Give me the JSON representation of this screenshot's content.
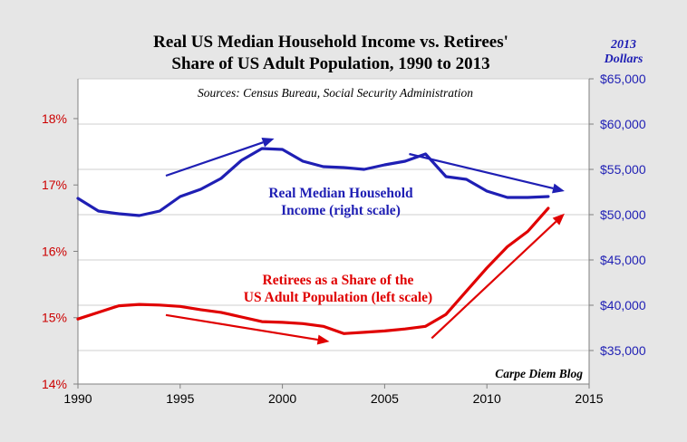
{
  "chart_data": {
    "type": "line",
    "title_lines": [
      "Real US Median Household Income vs. Retirees'",
      "Share of US Adult Population, 1990 to 2013"
    ],
    "right_axis_unit_lines": [
      "2013",
      "Dollars"
    ],
    "source_note": "Sources: Census Bureau, Social Security Administration",
    "credit": "Carpe Diem Blog",
    "x_range": [
      1990,
      2015
    ],
    "x_ticks": [
      1990,
      1995,
      2000,
      2005,
      2010,
      2015
    ],
    "y_left_range": [
      14,
      18.6
    ],
    "y_left_ticks": [
      14,
      15,
      16,
      17,
      18
    ],
    "y_left_tick_labels": [
      "14%",
      "15%",
      "16%",
      "17%",
      "18%"
    ],
    "y_right_range": [
      31300,
      65000
    ],
    "y_right_ticks": [
      35000,
      40000,
      45000,
      50000,
      55000,
      60000,
      65000
    ],
    "y_right_tick_labels": [
      "$35,000",
      "$40,000",
      "$45,000",
      "$50,000",
      "$55,000",
      "$60,000",
      "$65,000"
    ],
    "grid": true,
    "series": [
      {
        "axis": "right",
        "color": "#1f1fb4",
        "annotation_lines": [
          "Real Median Household",
          "Income (right scale)"
        ],
        "x": [
          1990,
          1991,
          1992,
          1993,
          1994,
          1995,
          1996,
          1997,
          1998,
          1999,
          2000,
          2001,
          2002,
          2003,
          2004,
          2005,
          2006,
          2007,
          2008,
          2009,
          2010,
          2011,
          2012,
          2013
        ],
        "values": [
          51800,
          50400,
          50100,
          49900,
          50400,
          52000,
          52800,
          54000,
          56000,
          57300,
          57200,
          55900,
          55300,
          55200,
          55000,
          55500,
          55900,
          56700,
          54200,
          53900,
          52600,
          51900,
          51900,
          52000
        ]
      },
      {
        "axis": "left",
        "color": "#e00000",
        "annotation_lines": [
          "Retirees as a Share of the",
          "US Adult Population (left scale)"
        ],
        "x": [
          1990,
          1991,
          1992,
          1993,
          1994,
          1995,
          1996,
          1997,
          1998,
          1999,
          2000,
          2001,
          2002,
          2003,
          2004,
          2005,
          2006,
          2007,
          2008,
          2009,
          2010,
          2011,
          2012,
          2013
        ],
        "values": [
          14.98,
          15.08,
          15.18,
          15.2,
          15.19,
          15.17,
          15.12,
          15.08,
          15.01,
          14.94,
          14.93,
          14.91,
          14.87,
          14.76,
          14.78,
          14.8,
          14.83,
          14.87,
          15.05,
          15.4,
          15.75,
          16.07,
          16.3,
          16.65
        ]
      }
    ],
    "trend_arrows": [
      {
        "color": "#1f1fb4",
        "from": [
          1994.3,
          54300
        ],
        "to": [
          1999.6,
          58400
        ]
      },
      {
        "color": "#1f1fb4",
        "from": [
          2006.2,
          56700
        ],
        "to": [
          2013.8,
          52600
        ]
      },
      {
        "color": "#e00000",
        "from": [
          1994.3,
          15.04
        ],
        "to": [
          2002.3,
          14.64
        ]
      },
      {
        "color": "#e00000",
        "from": [
          2007.3,
          14.69
        ],
        "to": [
          2013.8,
          16.57
        ]
      }
    ]
  }
}
